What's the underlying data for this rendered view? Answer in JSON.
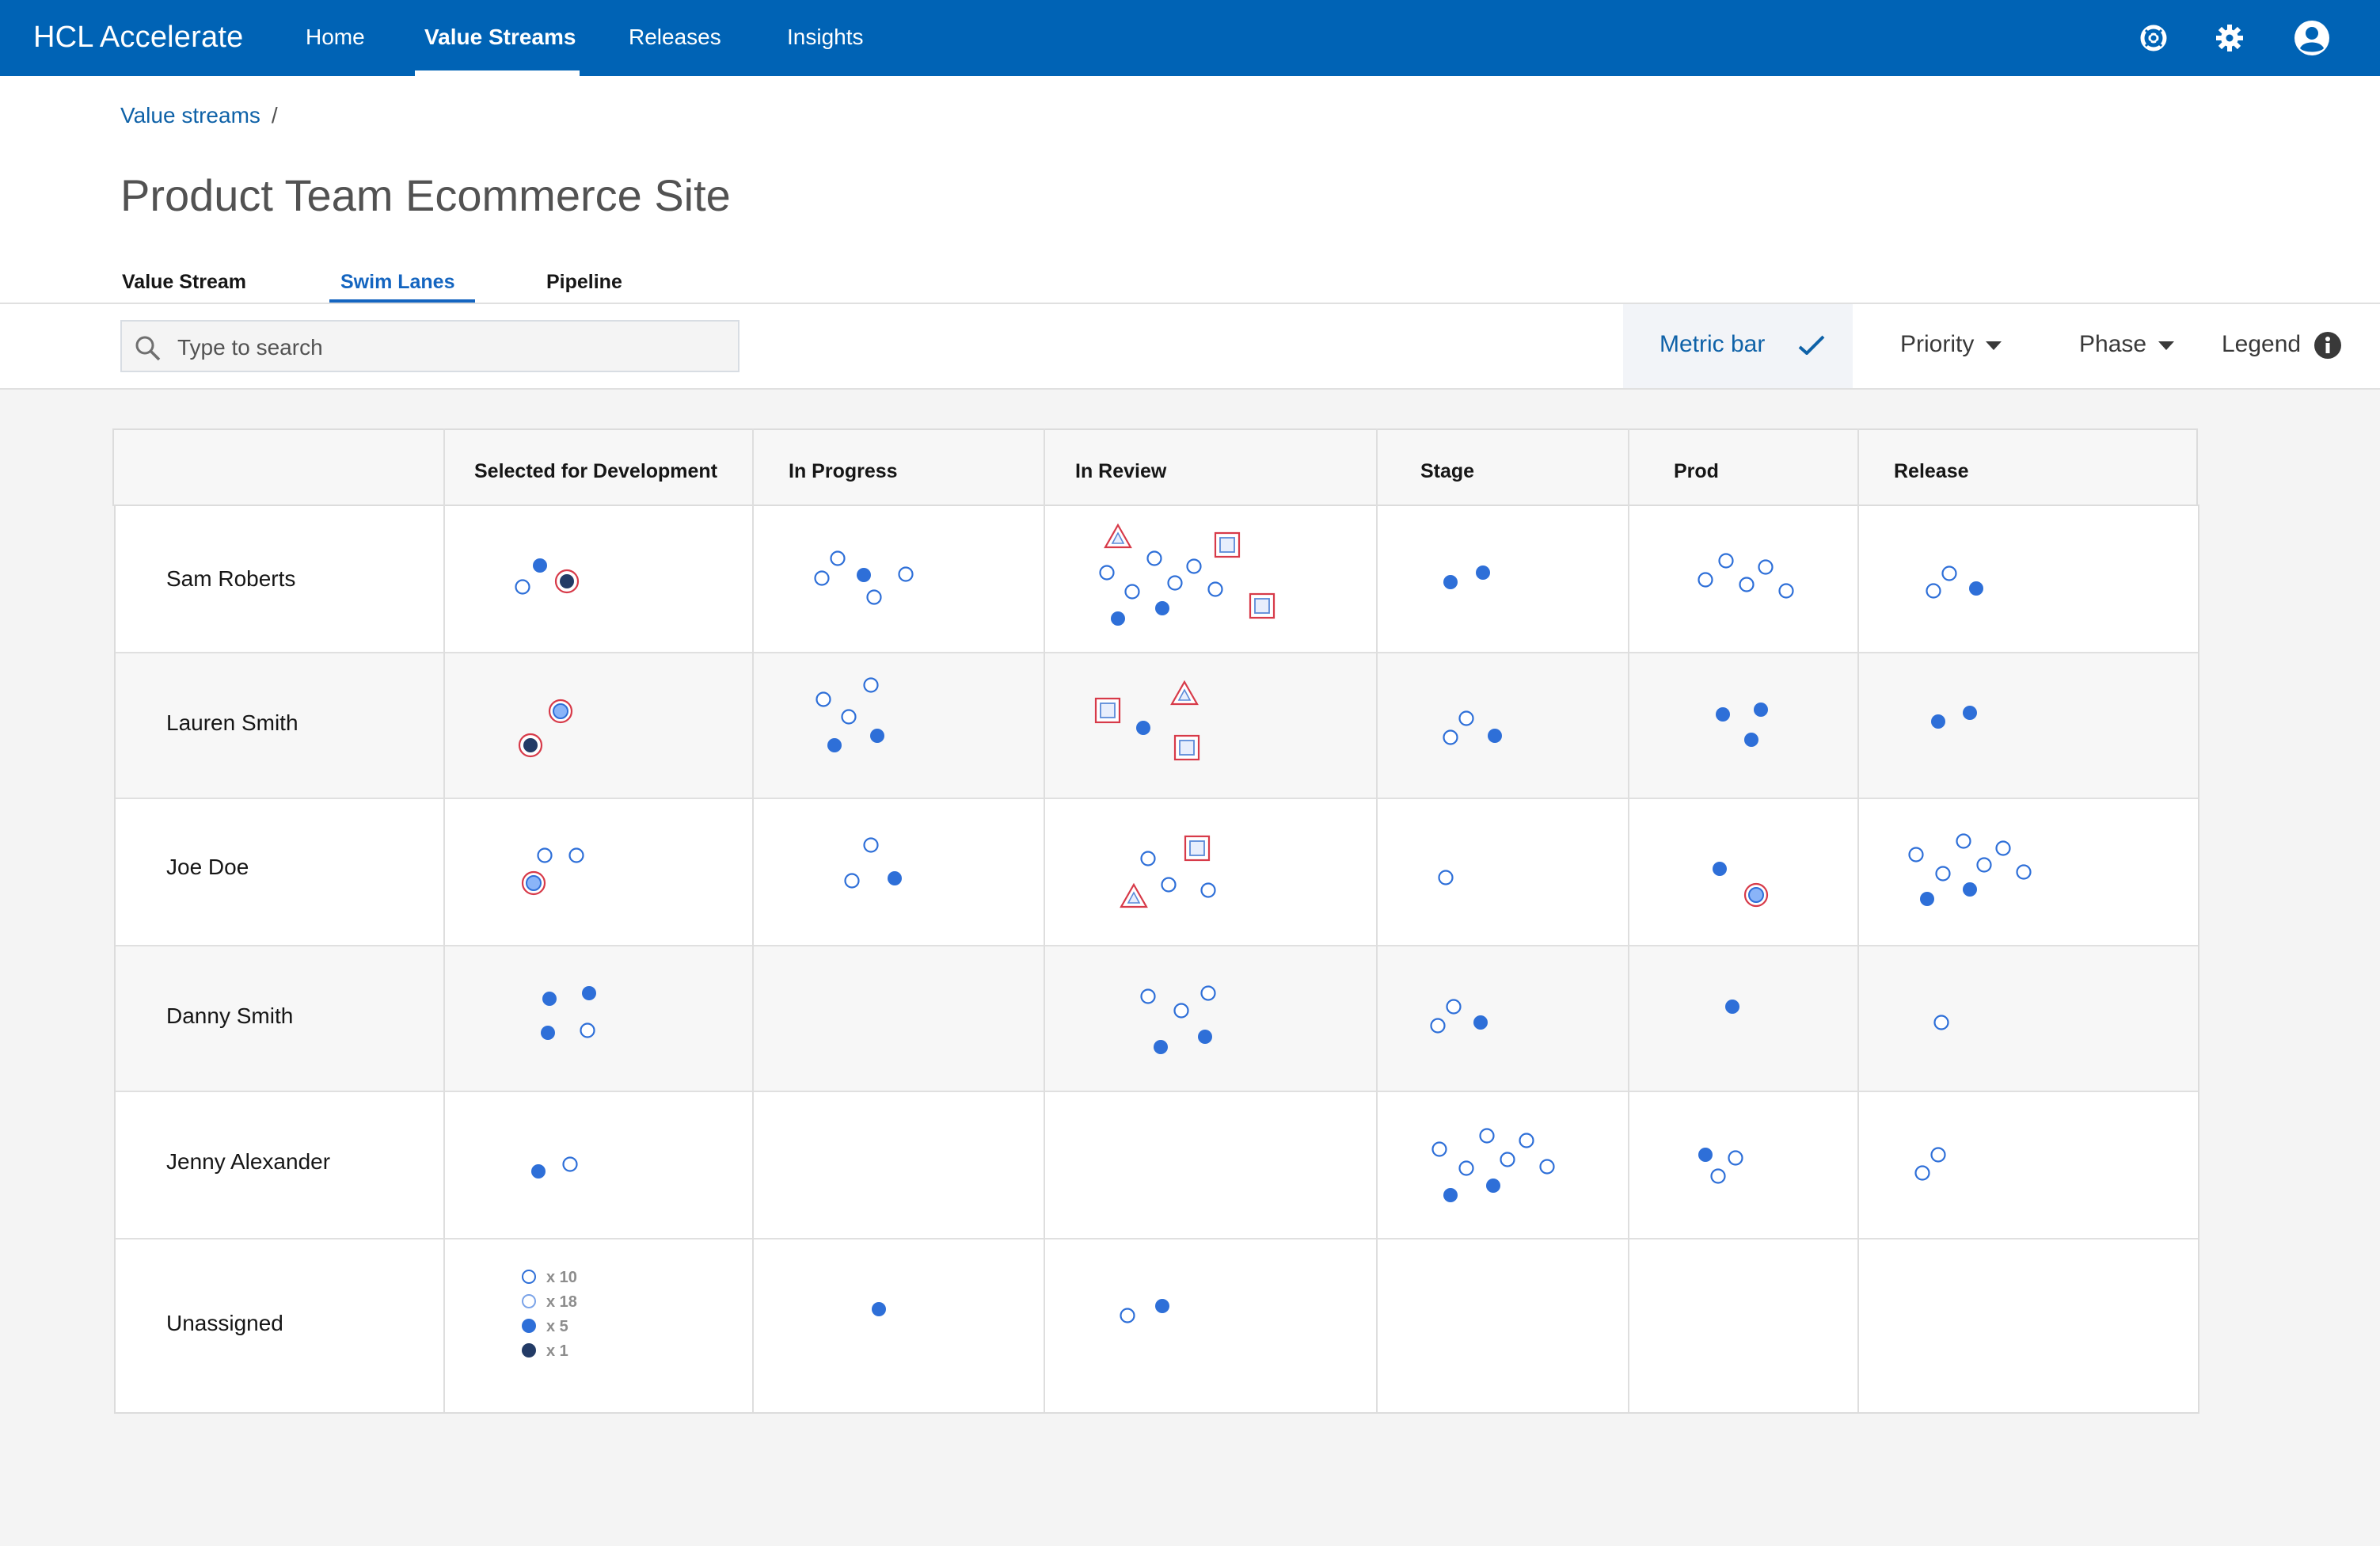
{
  "app": {
    "brand": "HCL Accelerate"
  },
  "nav": {
    "items": [
      "Home",
      "Value Streams",
      "Releases",
      "Insights"
    ],
    "active": "Value Streams"
  },
  "breadcrumb": {
    "root": "Value streams",
    "separator": "/"
  },
  "page": {
    "title": "Product Team Ecommerce Site"
  },
  "tabs": {
    "items": [
      "Value Stream",
      "Swim Lanes",
      "Pipeline"
    ],
    "active": "Swim Lanes"
  },
  "toolbar": {
    "search_placeholder": "Type to search",
    "metric_bar_label": "Metric bar",
    "priority_label": "Priority",
    "phase_label": "Phase",
    "legend_label": "Legend"
  },
  "icons": {
    "help": "help-icon",
    "settings": "gear-icon",
    "user": "user-icon",
    "search": "search-icon",
    "metric": "chevron-up-icon",
    "dropdown": "caret-down-icon",
    "info": "info-icon"
  },
  "colors": {
    "nav_bg": "#0063b5",
    "accent": "#1465c0",
    "marker": "#2e6fd8",
    "marker_dark": "#233b66",
    "alert": "#d73a49"
  },
  "grid": {
    "columns": [
      "Selected for Development",
      "In Progress",
      "In Review",
      "Stage",
      "Prod",
      "Release"
    ],
    "rows": [
      {
        "name": "Sam Roberts"
      },
      {
        "name": "Lauren Smith"
      },
      {
        "name": "Joe Doe"
      },
      {
        "name": "Danny Smith"
      },
      {
        "name": "Jenny Alexander"
      },
      {
        "name": "Unassigned"
      }
    ],
    "legend_counts": [
      {
        "marker": "open",
        "label": "x 10"
      },
      {
        "marker": "open-light",
        "label": "x 18"
      },
      {
        "marker": "filled",
        "label": "x 5"
      },
      {
        "marker": "dark",
        "label": "x 1"
      }
    ]
  }
}
